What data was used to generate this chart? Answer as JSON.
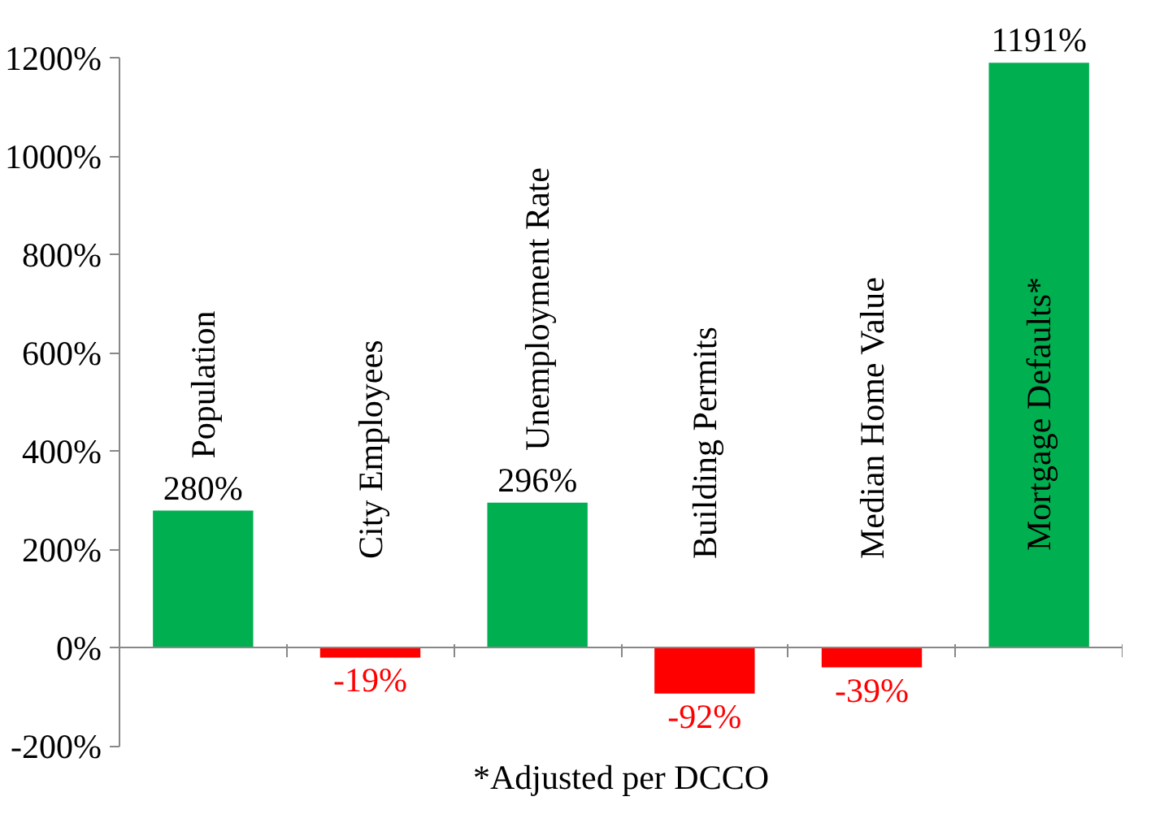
{
  "chart_data": {
    "type": "bar",
    "categories": [
      "Population",
      "City Employees",
      "Unemployment Rate",
      "Building Permits",
      "Median Home Value",
      "Mortgage Defaults*"
    ],
    "values": [
      280,
      -19,
      296,
      -92,
      -39,
      1191
    ],
    "colors": [
      "#00b050",
      "#ff0000",
      "#00b050",
      "#ff0000",
      "#ff0000",
      "#00b050"
    ],
    "value_labels": [
      "280%",
      "-19%",
      "296%",
      "-92%",
      "-39%",
      "1191%"
    ],
    "ylim": [
      -200,
      1200
    ],
    "yticks": [
      {
        "value": -200,
        "label": "-200%"
      },
      {
        "value": 0,
        "label": "0%"
      },
      {
        "value": 200,
        "label": "200%"
      },
      {
        "value": 400,
        "label": "400%"
      },
      {
        "value": 600,
        "label": "600%"
      },
      {
        "value": 800,
        "label": "800%"
      },
      {
        "value": 1000,
        "label": "1000%"
      },
      {
        "value": 1200,
        "label": "1200%"
      }
    ],
    "grid": false,
    "annotations": [
      "*Adjusted per DCCO"
    ]
  }
}
